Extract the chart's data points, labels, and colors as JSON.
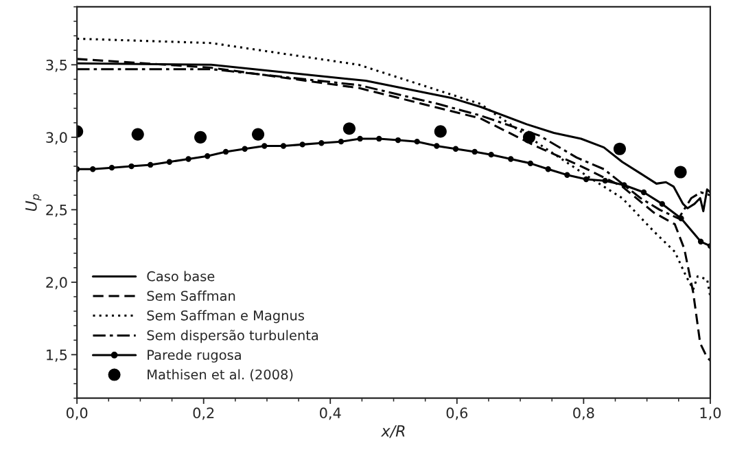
{
  "chart_data": {
    "type": "line",
    "xlabel": "x/R",
    "ylabel": "U$_{p}$",
    "xlim": [
      0,
      1
    ],
    "ylim": [
      1.2,
      3.9
    ],
    "xticks": [
      {
        "value": 0,
        "label": "0,0"
      },
      {
        "value": 0.2,
        "label": "0,2"
      },
      {
        "value": 0.4,
        "label": "0,4"
      },
      {
        "value": 0.6,
        "label": "0,6"
      },
      {
        "value": 0.8,
        "label": "0,8"
      },
      {
        "value": 1.0,
        "label": "1,0"
      }
    ],
    "yticks": [
      {
        "value": 1.5,
        "label": "1,5"
      },
      {
        "value": 2.0,
        "label": "2,0"
      },
      {
        "value": 2.5,
        "label": "2,5"
      },
      {
        "value": 3.0,
        "label": "3,0"
      },
      {
        "value": 3.5,
        "label": "3,5"
      }
    ],
    "grid": false,
    "legend": "bottom left",
    "series": [
      {
        "name": "Caso base",
        "color": "#000000",
        "line_style": "solid",
        "marker": "none",
        "x": [
          0.0,
          0.212,
          0.456,
          0.592,
          0.637,
          0.71,
          0.753,
          0.796,
          0.832,
          0.861,
          0.89,
          0.915,
          0.93,
          0.942,
          0.957,
          0.964,
          0.975,
          0.984,
          0.989,
          0.995,
          1.0
        ],
        "values": [
          3.51,
          3.5,
          3.39,
          3.27,
          3.21,
          3.09,
          3.03,
          2.99,
          2.93,
          2.83,
          2.75,
          2.68,
          2.69,
          2.66,
          2.54,
          2.51,
          2.54,
          2.58,
          2.49,
          2.64,
          2.62
        ]
      },
      {
        "name": "Sem Saffman",
        "color": "#000000",
        "line_style": "dashed",
        "marker": "none",
        "x": [
          0.0,
          0.212,
          0.445,
          0.637,
          0.724,
          0.796,
          0.861,
          0.911,
          0.944,
          0.959,
          0.973,
          0.984,
          0.995,
          1.0
        ],
        "values": [
          3.54,
          3.48,
          3.34,
          3.13,
          2.94,
          2.8,
          2.66,
          2.48,
          2.4,
          2.23,
          1.93,
          1.58,
          1.48,
          1.46
        ]
      },
      {
        "name": "Sem Saffman e Magnus",
        "color": "#000000",
        "line_style": "dotted",
        "marker": "none",
        "x": [
          0.0,
          0.212,
          0.445,
          0.637,
          0.724,
          0.81,
          0.861,
          0.911,
          0.944,
          0.962,
          0.973,
          0.98,
          0.995,
          1.0
        ],
        "values": [
          3.68,
          3.65,
          3.5,
          3.23,
          2.97,
          2.72,
          2.58,
          2.35,
          2.21,
          2.04,
          1.95,
          2.04,
          2.02,
          1.9
        ]
      },
      {
        "name": "Sem dispersão turbulenta",
        "color": "#000000",
        "line_style": "dashdot",
        "marker": "none",
        "x": [
          0.0,
          0.212,
          0.445,
          0.57,
          0.637,
          0.731,
          0.789,
          0.832,
          0.861,
          0.89,
          0.92,
          0.95,
          0.97,
          0.985,
          1.0
        ],
        "values": [
          3.47,
          3.47,
          3.36,
          3.23,
          3.15,
          3.01,
          2.86,
          2.78,
          2.68,
          2.58,
          2.5,
          2.44,
          2.58,
          2.62,
          2.6
        ]
      },
      {
        "name": "Parede rugosa",
        "color": "#000000",
        "line_style": "solid",
        "marker": "circle",
        "x": [
          0.0,
          0.025,
          0.055,
          0.086,
          0.116,
          0.146,
          0.176,
          0.206,
          0.235,
          0.265,
          0.296,
          0.326,
          0.356,
          0.386,
          0.417,
          0.447,
          0.477,
          0.507,
          0.537,
          0.568,
          0.598,
          0.628,
          0.654,
          0.685,
          0.716,
          0.744,
          0.774,
          0.804,
          0.834,
          0.864,
          0.895,
          0.924,
          0.954,
          0.985,
          1.0
        ],
        "values": [
          2.78,
          2.78,
          2.79,
          2.8,
          2.81,
          2.83,
          2.85,
          2.87,
          2.9,
          2.92,
          2.94,
          2.94,
          2.95,
          2.96,
          2.97,
          2.99,
          2.99,
          2.98,
          2.97,
          2.94,
          2.92,
          2.9,
          2.88,
          2.85,
          2.82,
          2.78,
          2.74,
          2.71,
          2.7,
          2.67,
          2.62,
          2.54,
          2.44,
          2.28,
          2.25
        ]
      },
      {
        "name": "Mathisen et al. (2008)",
        "type": "scatter",
        "color": "#000000",
        "marker": "circle",
        "x": [
          0.0,
          0.096,
          0.195,
          0.286,
          0.43,
          0.574,
          0.714,
          0.857,
          0.953
        ],
        "values": [
          3.04,
          3.02,
          3.0,
          3.02,
          3.06,
          3.04,
          3.0,
          2.92,
          2.76
        ]
      }
    ]
  }
}
